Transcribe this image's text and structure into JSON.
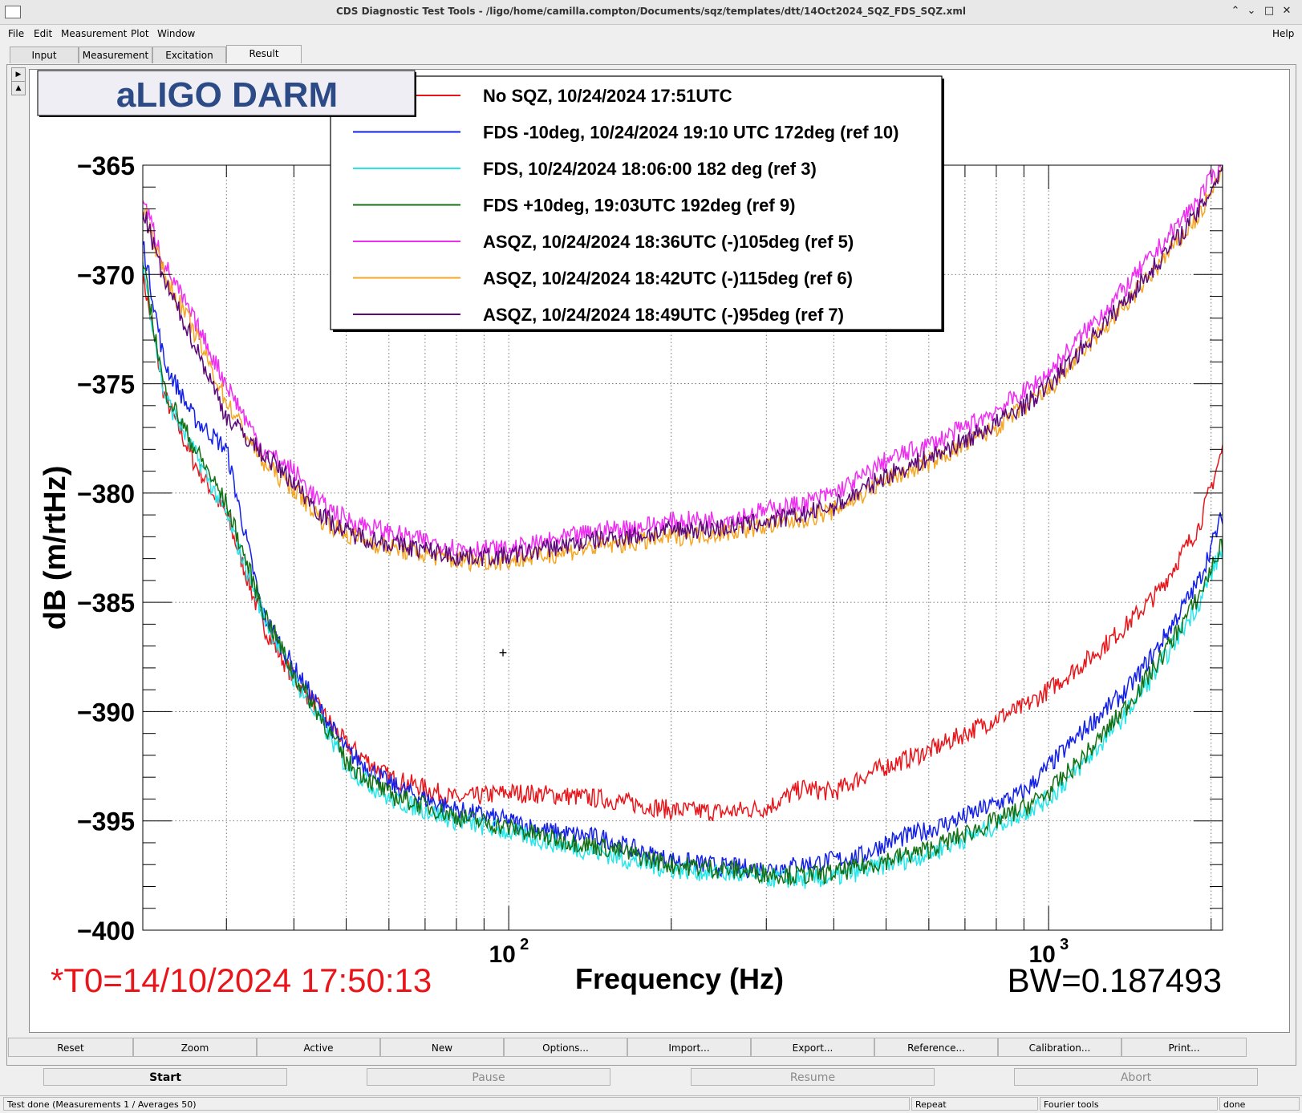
{
  "window": {
    "title": "CDS Diagnostic Test Tools - /ligo/home/camilla.compton/Documents/sqz/templates/dtt/14Oct2024_SQZ_FDS_SQZ.xml",
    "buttons": {
      "minimize": "⌃",
      "restore": "⌄",
      "maximize": "□",
      "close": "✕"
    }
  },
  "menu": {
    "file": "File",
    "edit": "Edit",
    "measurement": "Measurement",
    "plot": "Plot",
    "window": "Window",
    "help": "Help"
  },
  "tabs": [
    "Input",
    "Measurement",
    "Excitation",
    "Result"
  ],
  "plot": {
    "banner": "aLIGO DARM",
    "t0": "*T0=14/10/2024 17:50:13",
    "bw": "BW=0.187493",
    "cursor_symbol": "+"
  },
  "chart_data": {
    "type": "line",
    "xlabel": "Frequency (Hz)",
    "ylabel": "dB (m/rtHz)",
    "xscale": "log",
    "xlim": [
      21,
      2100
    ],
    "ylim": [
      -400,
      -365
    ],
    "yticks": [
      -365,
      -370,
      -375,
      -380,
      -385,
      -390,
      -395,
      -400
    ],
    "ytick_labels": [
      "−365",
      "−370",
      "−375",
      "−380",
      "−385",
      "−390",
      "−395",
      "−400"
    ],
    "xtick_majors": [
      {
        "value": 100,
        "base": "10",
        "exp": "2"
      },
      {
        "value": 1000,
        "base": "10",
        "exp": "3"
      }
    ],
    "legend_position": "top",
    "grid": true,
    "series": [
      {
        "name": "No SQZ, 10/24/2024 17:51UTC",
        "color": "#e8161b",
        "x": [
          21,
          23,
          26,
          30,
          35,
          40,
          45,
          50,
          60,
          70,
          80,
          100,
          120,
          150,
          180,
          200,
          250,
          300,
          350,
          400,
          450,
          500,
          600,
          700,
          800,
          900,
          1000,
          1200,
          1400,
          1600,
          1900,
          2100
        ],
        "y": [
          -370,
          -375.5,
          -378.5,
          -381,
          -386,
          -388.5,
          -390,
          -391.5,
          -393,
          -393.5,
          -394,
          -393.7,
          -393.8,
          -394,
          -394.3,
          -394.5,
          -394.6,
          -394.4,
          -393.5,
          -393.7,
          -393,
          -392.5,
          -391.8,
          -391,
          -390.3,
          -389.8,
          -389,
          -387.5,
          -386,
          -384.5,
          -381.5,
          -378
        ]
      },
      {
        "name": "FDS -10deg, 10/24/2024 19:10 UTC 172deg (ref 10)",
        "color": "#1320e8",
        "x": [
          21,
          23,
          26,
          30,
          35,
          40,
          45,
          50,
          60,
          70,
          80,
          100,
          120,
          150,
          180,
          200,
          250,
          300,
          350,
          400,
          450,
          500,
          600,
          700,
          800,
          900,
          1000,
          1200,
          1400,
          1600,
          1900,
          2100
        ],
        "y": [
          -368.5,
          -374,
          -376.5,
          -378,
          -385.5,
          -388,
          -390,
          -391.8,
          -393.3,
          -394,
          -394.5,
          -395,
          -395.5,
          -395.8,
          -396.5,
          -396.8,
          -397.1,
          -397.2,
          -397,
          -396.8,
          -396.6,
          -396,
          -395.4,
          -394.8,
          -394.2,
          -393.7,
          -392.5,
          -390.5,
          -389,
          -387,
          -384,
          -381
        ]
      },
      {
        "name": "FDS, 10/24/2024 18:06:00 182 deg (ref 3)",
        "color": "#26e6ea",
        "x": [
          21,
          23,
          26,
          30,
          35,
          40,
          45,
          50,
          60,
          70,
          80,
          100,
          120,
          150,
          180,
          200,
          250,
          300,
          350,
          400,
          450,
          500,
          600,
          700,
          800,
          900,
          1000,
          1200,
          1400,
          1600,
          1900,
          2100
        ],
        "y": [
          -369.5,
          -375.5,
          -378,
          -381,
          -385.5,
          -388.5,
          -390.5,
          -392.5,
          -394,
          -394.5,
          -395,
          -395.5,
          -396,
          -396.5,
          -397,
          -397.2,
          -397.4,
          -397.6,
          -397.7,
          -397.6,
          -397.3,
          -397,
          -396.5,
          -395.8,
          -395.2,
          -394.6,
          -394,
          -392,
          -390,
          -388,
          -385,
          -382.5
        ]
      },
      {
        "name": "FDS +10deg, 19:03UTC 192deg  (ref 9)",
        "color": "#157015",
        "x": [
          21,
          23,
          26,
          30,
          35,
          40,
          45,
          50,
          60,
          70,
          80,
          100,
          120,
          150,
          180,
          200,
          250,
          300,
          350,
          400,
          450,
          500,
          600,
          700,
          800,
          900,
          1000,
          1200,
          1400,
          1600,
          1900,
          2100
        ],
        "y": [
          -369.5,
          -375.2,
          -377.8,
          -380.5,
          -385.3,
          -388.3,
          -390.3,
          -392.3,
          -393.8,
          -394.3,
          -394.8,
          -395.3,
          -395.8,
          -396.2,
          -396.7,
          -397,
          -397.2,
          -397.4,
          -397.5,
          -397.4,
          -397.1,
          -396.8,
          -396.3,
          -395.6,
          -395,
          -394.4,
          -393.7,
          -391.7,
          -389.7,
          -387.7,
          -384.7,
          -382.3
        ]
      },
      {
        "name": "ASQZ, 10/24/2024 18:36UTC (-)105deg (ref 5)",
        "color": "#ee2ef0",
        "x": [
          21,
          23,
          26,
          30,
          35,
          40,
          45,
          50,
          60,
          70,
          80,
          100,
          120,
          150,
          180,
          200,
          250,
          300,
          350,
          400,
          450,
          500,
          600,
          700,
          800,
          900,
          1000,
          1200,
          1400,
          1600,
          1900,
          2100
        ],
        "y": [
          -366.5,
          -369.5,
          -372,
          -375,
          -378,
          -379,
          -380.5,
          -381.2,
          -381.8,
          -382.2,
          -382.5,
          -382.6,
          -382.2,
          -381.7,
          -381.5,
          -381.3,
          -381.2,
          -380.8,
          -380.5,
          -380,
          -379.3,
          -378.5,
          -377.8,
          -377,
          -376.2,
          -375.4,
          -374.5,
          -372.3,
          -370.5,
          -368.8,
          -366.5,
          -364.8
        ]
      },
      {
        "name": "ASQZ, 10/24/2024 18:42UTC (-)115deg (ref 6)",
        "color": "#f5a623",
        "x": [
          21,
          23,
          26,
          30,
          35,
          40,
          45,
          50,
          60,
          70,
          80,
          100,
          120,
          150,
          180,
          200,
          250,
          300,
          350,
          400,
          450,
          500,
          600,
          700,
          800,
          900,
          1000,
          1200,
          1400,
          1600,
          1900,
          2100
        ],
        "y": [
          -366.8,
          -370,
          -372.5,
          -375.8,
          -378.6,
          -379.8,
          -381.2,
          -381.9,
          -382.5,
          -382.8,
          -383.1,
          -383.1,
          -382.8,
          -382.4,
          -382.2,
          -382,
          -381.8,
          -381.5,
          -381.2,
          -380.8,
          -380.1,
          -379.4,
          -378.6,
          -377.8,
          -377,
          -376.1,
          -375.3,
          -373.1,
          -371.3,
          -369.6,
          -367.3,
          -365.3
        ]
      },
      {
        "name": "ASQZ, 10/24/2024 18:49UTC (-)95deg (ref 7)",
        "color": "#5c0a7a",
        "x": [
          21,
          23,
          26,
          30,
          35,
          40,
          45,
          50,
          60,
          70,
          80,
          100,
          120,
          150,
          180,
          200,
          250,
          300,
          350,
          400,
          450,
          500,
          600,
          700,
          800,
          900,
          1000,
          1200,
          1400,
          1600,
          1900,
          2100
        ],
        "y": [
          -367,
          -370.3,
          -373,
          -376.5,
          -378.2,
          -379.5,
          -381,
          -381.8,
          -382.3,
          -382.6,
          -382.9,
          -382.9,
          -382.5,
          -382.1,
          -381.9,
          -381.7,
          -381.6,
          -381.3,
          -381,
          -380.6,
          -379.9,
          -379.2,
          -378.4,
          -377.6,
          -376.8,
          -376,
          -375.1,
          -372.9,
          -371.1,
          -369.4,
          -367.1,
          -365.1
        ]
      }
    ]
  },
  "toolbar": [
    "Reset",
    "Zoom",
    "Active",
    "New",
    "Options...",
    "Import...",
    "Export...",
    "Reference...",
    "Calibration...",
    "Print..."
  ],
  "controls": {
    "start": "Start",
    "pause": "Pause",
    "resume": "Resume",
    "abort": "Abort"
  },
  "status": {
    "message": "Test done (Measurements 1 / Averages 50)",
    "repeat": "Repeat",
    "fourier": "Fourier tools",
    "state": "done"
  }
}
